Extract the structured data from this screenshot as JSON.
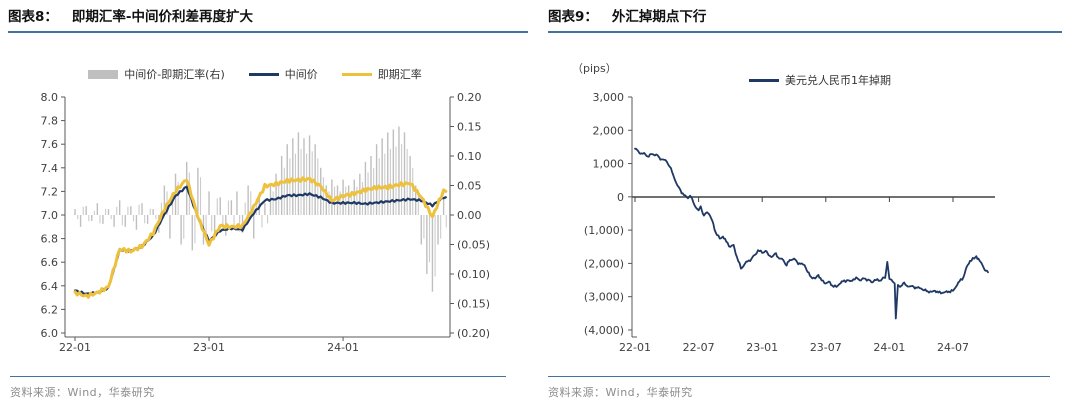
{
  "panels": [
    {
      "source": "资料来源：Wind，华泰研究"
    },
    {
      "source": "资料来源：Wind，华泰研究"
    }
  ],
  "colors": {
    "navy": "#1f3864",
    "yellow": "#eec13d",
    "bar_gray": "#bfbfbf",
    "axis": "#595959",
    "axis_dark": "#404040",
    "tick_label": "#404040",
    "accent_rule": "#41719c",
    "source_text": "#8c8c8c"
  },
  "chart_data": [
    {
      "type": "bar",
      "subtype": "dual-axis bar + line",
      "title_prefix": "图表8：",
      "title": "即期汇率-中间价利差再度扩大",
      "start_month": "2022-01",
      "x_tick_labels": [
        "22-01",
        "23-01",
        "24-01"
      ],
      "x_tick_months": [
        0,
        12,
        24
      ],
      "left_axis": {
        "range": [
          6.0,
          8.0
        ],
        "ticks": [
          "8.0",
          "7.8",
          "7.6",
          "7.4",
          "7.2",
          "7.0",
          "6.8",
          "6.6",
          "6.4",
          "6.2",
          "6.0"
        ]
      },
      "right_axis": {
        "range": [
          -0.2,
          0.2
        ],
        "ticks": [
          "0.20",
          "0.15",
          "0.10",
          "0.05",
          "0.00",
          "(0.05)",
          "(0.10)",
          "(0.15)",
          "(0.20)"
        ]
      },
      "bars": {
        "name": "中间价-即期汇率(右)",
        "axis": "right",
        "step_months": 0.5,
        "values": [
          0.01,
          -0.02,
          0.015,
          -0.01,
          0.02,
          -0.015,
          0.01,
          -0.02,
          0.025,
          -0.02,
          0.015,
          -0.025,
          0.02,
          -0.015,
          0.01,
          -0.03,
          0.05,
          -0.04,
          0.07,
          -0.05,
          0.09,
          -0.06,
          0.08,
          -0.05,
          0.04,
          -0.04,
          0.03,
          -0.035,
          0.025,
          0.04,
          -0.03,
          0.05,
          -0.04,
          0.03,
          0.02,
          0.05,
          0.07,
          0.1,
          0.12,
          0.13,
          0.14,
          0.13,
          0.135,
          0.12,
          0.08,
          0.05,
          0.06,
          0.05,
          0.06,
          0.05,
          0.06,
          0.07,
          0.09,
          0.1,
          0.12,
          0.13,
          0.14,
          0.145,
          0.15,
          0.14,
          0.1,
          0.05,
          -0.05,
          -0.1,
          -0.13,
          -0.05,
          0.03
        ]
      },
      "series": [
        {
          "name": "中间价",
          "color": "navy",
          "axis": "left",
          "step_months": 1,
          "values": [
            6.36,
            6.33,
            6.34,
            6.38,
            6.7,
            6.69,
            6.73,
            6.82,
            7.0,
            7.16,
            7.24,
            6.98,
            6.78,
            6.87,
            6.89,
            6.88,
            7.02,
            7.13,
            7.14,
            7.17,
            7.17,
            7.18,
            7.15,
            7.1,
            7.1,
            7.1,
            7.09,
            7.1,
            7.11,
            7.12,
            7.13,
            7.12,
            7.08,
            7.15
          ]
        },
        {
          "name": "即期汇率",
          "color": "yellow",
          "axis": "left",
          "step_months": 1,
          "values": [
            6.35,
            6.32,
            6.35,
            6.4,
            6.72,
            6.7,
            6.74,
            6.85,
            7.05,
            7.2,
            7.3,
            6.98,
            6.74,
            6.9,
            6.89,
            6.9,
            7.06,
            7.24,
            7.26,
            7.29,
            7.3,
            7.31,
            7.25,
            7.13,
            7.17,
            7.19,
            7.22,
            7.24,
            7.24,
            7.26,
            7.27,
            7.15,
            6.98,
            7.2
          ]
        }
      ]
    },
    {
      "type": "line",
      "title_prefix": "图表9：",
      "title": "外汇掉期点下行",
      "unit_label": "（pips）",
      "start_month": "2022-01",
      "x_tick_labels": [
        "22-01",
        "22-07",
        "23-01",
        "23-07",
        "24-01",
        "24-07"
      ],
      "x_tick_months": [
        0,
        6,
        12,
        18,
        24,
        30
      ],
      "y_axis": {
        "range": [
          -4000,
          3000
        ],
        "ticks": [
          "3,000",
          "2,000",
          "1,000",
          "0",
          "(1,000)",
          "(2,000)",
          "(3,000)",
          "(4,000)"
        ]
      },
      "series": [
        {
          "name": "美元兑人民币1年掉期",
          "color": "navy",
          "points_month_value": [
            [
              0,
              1450
            ],
            [
              0.3,
              1380
            ],
            [
              0.6,
              1310
            ],
            [
              1,
              1270
            ],
            [
              1.3,
              1210
            ],
            [
              1.6,
              1290
            ],
            [
              2,
              1280
            ],
            [
              2.3,
              1180
            ],
            [
              2.6,
              1130
            ],
            [
              3,
              1060
            ],
            [
              3.3,
              900
            ],
            [
              3.6,
              660
            ],
            [
              4,
              350
            ],
            [
              4.3,
              200
            ],
            [
              4.6,
              60
            ],
            [
              5,
              -40
            ],
            [
              5.2,
              40
            ],
            [
              5.5,
              -160
            ],
            [
              5.8,
              -340
            ],
            [
              6,
              -400
            ],
            [
              6.2,
              -280
            ],
            [
              6.5,
              -560
            ],
            [
              6.8,
              -460
            ],
            [
              7,
              -520
            ],
            [
              7.3,
              -720
            ],
            [
              7.6,
              -1060
            ],
            [
              8,
              -1250
            ],
            [
              8.3,
              -1190
            ],
            [
              8.6,
              -1340
            ],
            [
              9,
              -1500
            ],
            [
              9.3,
              -1440
            ],
            [
              9.6,
              -1790
            ],
            [
              10,
              -2150
            ],
            [
              10.3,
              -2040
            ],
            [
              10.6,
              -1940
            ],
            [
              11,
              -1850
            ],
            [
              11.3,
              -1740
            ],
            [
              11.6,
              -1600
            ],
            [
              12,
              -1680
            ],
            [
              12.3,
              -1620
            ],
            [
              12.6,
              -1750
            ],
            [
              13,
              -1780
            ],
            [
              13.3,
              -1690
            ],
            [
              13.6,
              -1850
            ],
            [
              14,
              -1900
            ],
            [
              14.3,
              -2060
            ],
            [
              14.6,
              -1890
            ],
            [
              15,
              -1850
            ],
            [
              15.3,
              -1960
            ],
            [
              15.6,
              -2010
            ],
            [
              16,
              -2050
            ],
            [
              16.3,
              -2260
            ],
            [
              16.6,
              -2400
            ],
            [
              17,
              -2450
            ],
            [
              17.3,
              -2340
            ],
            [
              17.6,
              -2510
            ],
            [
              18,
              -2600
            ],
            [
              18.3,
              -2540
            ],
            [
              18.6,
              -2660
            ],
            [
              19,
              -2700
            ],
            [
              19.3,
              -2610
            ],
            [
              19.6,
              -2540
            ],
            [
              20,
              -2500
            ],
            [
              20.3,
              -2530
            ],
            [
              20.6,
              -2470
            ],
            [
              21,
              -2450
            ],
            [
              21.3,
              -2510
            ],
            [
              21.6,
              -2450
            ],
            [
              22,
              -2480
            ],
            [
              22.3,
              -2560
            ],
            [
              22.6,
              -2490
            ],
            [
              23,
              -2520
            ],
            [
              23.3,
              -2470
            ],
            [
              23.6,
              -2430
            ],
            [
              23.8,
              -1950
            ],
            [
              24,
              -2460
            ],
            [
              24.3,
              -2540
            ],
            [
              24.5,
              -2600
            ],
            [
              24.6,
              -3650
            ],
            [
              24.8,
              -2640
            ],
            [
              25,
              -2700
            ],
            [
              25.3,
              -2590
            ],
            [
              25.6,
              -2660
            ],
            [
              26,
              -2680
            ],
            [
              26.3,
              -2700
            ],
            [
              26.6,
              -2730
            ],
            [
              27,
              -2750
            ],
            [
              27.3,
              -2800
            ],
            [
              27.6,
              -2830
            ],
            [
              28,
              -2850
            ],
            [
              28.3,
              -2820
            ],
            [
              28.6,
              -2870
            ],
            [
              29,
              -2880
            ],
            [
              29.3,
              -2850
            ],
            [
              29.6,
              -2840
            ],
            [
              30,
              -2820
            ],
            [
              30.3,
              -2690
            ],
            [
              30.6,
              -2540
            ],
            [
              31,
              -2400
            ],
            [
              31.3,
              -2090
            ],
            [
              31.6,
              -1920
            ],
            [
              32,
              -1850
            ],
            [
              32.2,
              -1780
            ],
            [
              32.5,
              -1910
            ],
            [
              32.8,
              -2060
            ],
            [
              33,
              -2200
            ],
            [
              33.3,
              -2260
            ]
          ]
        }
      ]
    }
  ]
}
